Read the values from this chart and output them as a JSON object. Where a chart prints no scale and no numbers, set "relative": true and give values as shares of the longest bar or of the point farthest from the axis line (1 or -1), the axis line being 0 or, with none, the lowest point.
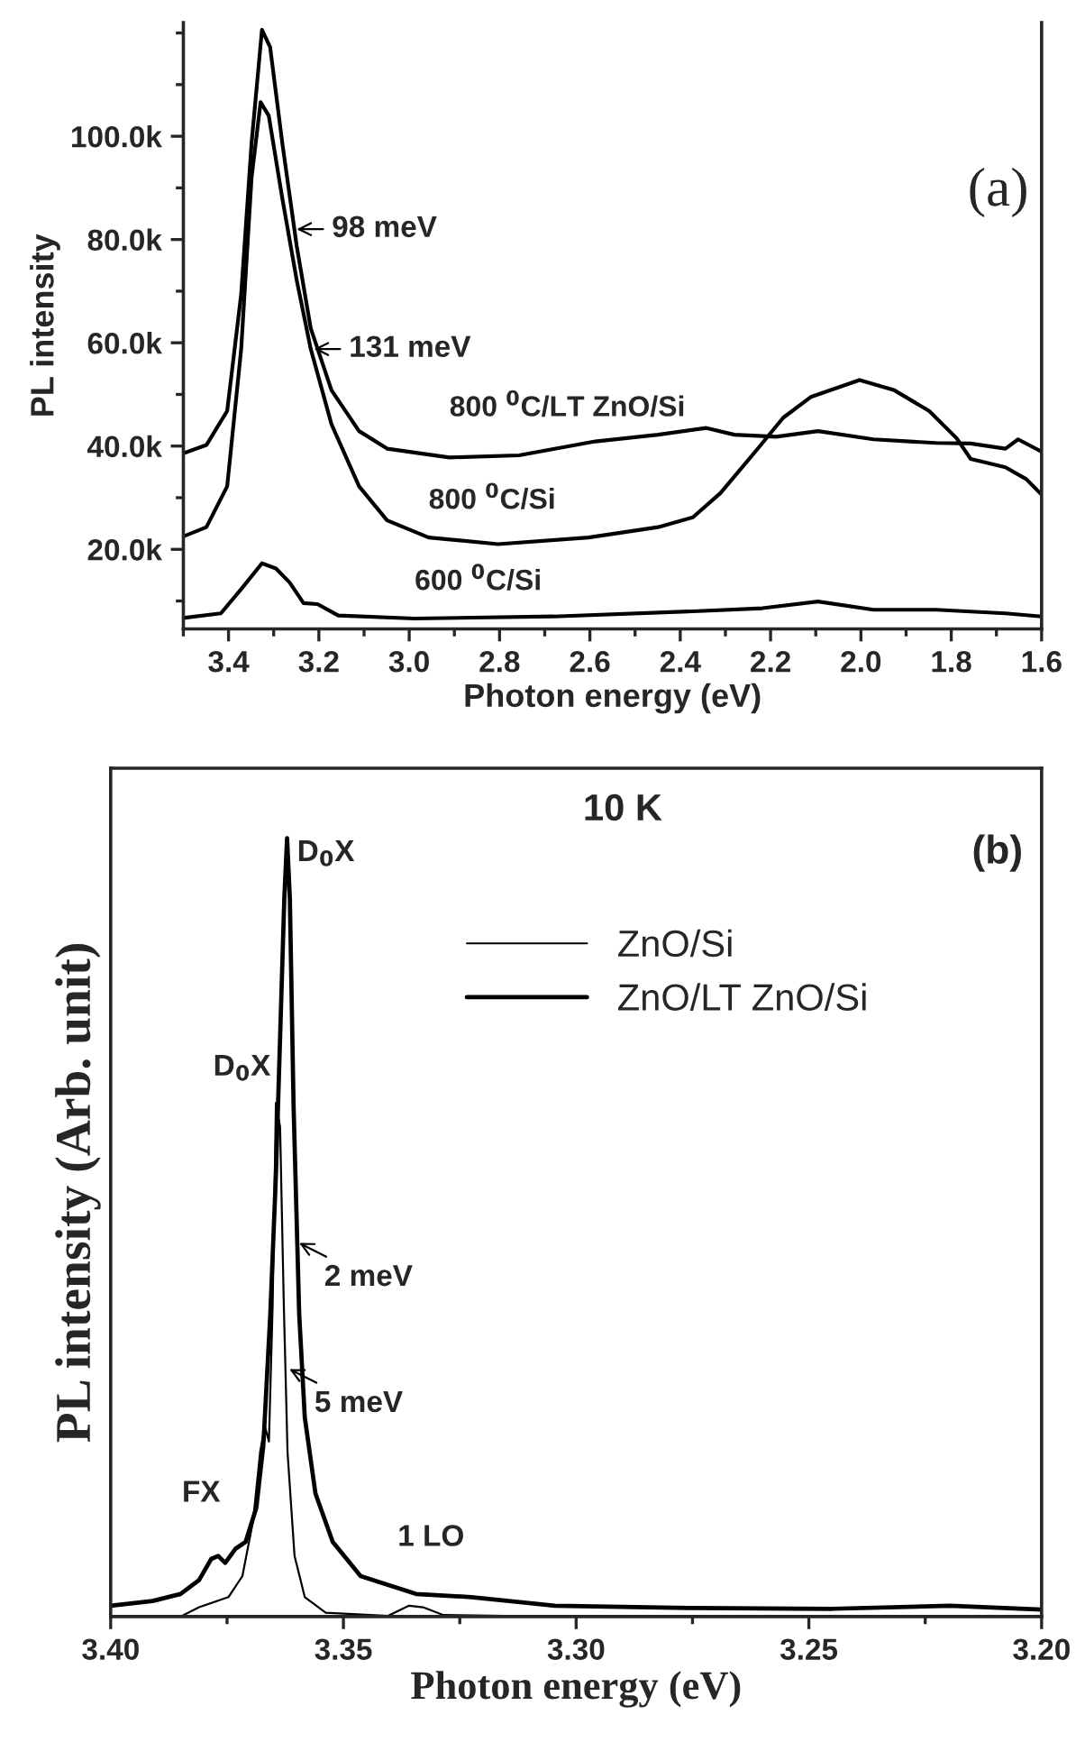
{
  "chart_data": [
    {
      "type": "line",
      "xlabel": "Photon energy (eV)",
      "ylabel": "PL intensity",
      "xlim": [
        3.5,
        1.6
      ],
      "ylim": [
        4.6,
        122
      ],
      "xticks": [
        3.4,
        3.2,
        {
          "value": 3.0,
          "label": "3.0"
        },
        2.8,
        2.6,
        2.4,
        2.2,
        {
          "value": 2.0,
          "label": "2.0"
        },
        1.8,
        1.6
      ],
      "yticks": [
        {
          "value": 20,
          "label": "20.0k"
        },
        {
          "value": 40,
          "label": "40.0k"
        },
        {
          "value": 60,
          "label": "60.0k"
        },
        {
          "value": 80,
          "label": "80.0k"
        },
        {
          "value": 100,
          "label": "100.0k"
        }
      ],
      "series": [
        {
          "name": "800 $^{0}$C/LT ZnO/Si",
          "color": "#000000",
          "x": [
            3.5,
            3.449,
            3.403,
            3.372,
            3.349,
            3.326,
            3.308,
            3.281,
            3.249,
            3.218,
            3.172,
            3.111,
            3.049,
            2.911,
            2.757,
            2.588,
            2.449,
            2.342,
            2.28,
            2.188,
            2.095,
            1.972,
            1.834,
            1.757,
            1.68,
            1.652,
            1.6
          ],
          "values": [
            38.6,
            40.2,
            46.8,
            69.4,
            98.7,
            120.6,
            117.3,
            98.7,
            78.7,
            62.8,
            50.8,
            42.9,
            39.5,
            37.8,
            38.2,
            40.9,
            42.2,
            43.5,
            42.2,
            41.8,
            42.9,
            41.3,
            40.6,
            40.5,
            39.5,
            41.3,
            38.9
          ]
        },
        {
          "name": "800 $^{0}$C/Si",
          "color": "#000000",
          "x": [
            3.5,
            3.449,
            3.403,
            3.372,
            3.349,
            3.329,
            3.311,
            3.281,
            3.249,
            3.218,
            3.172,
            3.111,
            3.049,
            2.957,
            2.803,
            2.603,
            2.449,
            2.372,
            2.311,
            2.234,
            2.172,
            2.111,
            2.003,
            1.926,
            1.849,
            1.788,
            1.757,
            1.68,
            1.634,
            1.6
          ],
          "values": [
            22.5,
            24.3,
            32.2,
            58.8,
            92.0,
            106.6,
            104.0,
            88.0,
            72.1,
            58.8,
            44.2,
            32.2,
            25.6,
            22.3,
            21.0,
            22.3,
            24.3,
            26.2,
            30.9,
            38.9,
            45.5,
            49.5,
            52.8,
            50.8,
            46.8,
            41.5,
            37.5,
            35.9,
            33.6,
            30.6
          ]
        },
        {
          "name": "600 $^{0}$C/Si",
          "color": "#000000",
          "x": [
            3.5,
            3.417,
            3.372,
            3.326,
            3.295,
            3.265,
            3.234,
            3.203,
            3.157,
            2.988,
            2.68,
            2.372,
            2.218,
            2.095,
            1.972,
            1.834,
            1.68,
            1.6
          ],
          "values": [
            6.7,
            7.6,
            12.3,
            17.3,
            16.3,
            13.6,
            9.6,
            9.4,
            7.2,
            6.6,
            7.0,
            8.0,
            8.6,
            9.9,
            8.3,
            8.3,
            7.6,
            7.0
          ]
        }
      ],
      "annotations": [
        "(a)",
        {
          "text": "98 meV",
          "x": 3.249,
          "y": 82
        },
        {
          "text": "131 meV",
          "x": 3.211,
          "y": 58.8
        }
      ]
    },
    {
      "type": "line",
      "xlabel": "Photon energy (eV)",
      "ylabel": "PL intensity (Arb. unit)",
      "relative": true,
      "xlim": [
        3.4,
        3.2
      ],
      "xticks": [
        {
          "value": 3.4,
          "label": "3.40"
        },
        {
          "value": 3.35,
          "label": "3.35"
        },
        {
          "value": 3.3,
          "label": "3.30"
        },
        {
          "value": 3.25,
          "label": "3.25"
        },
        {
          "value": 3.2,
          "label": "3.20"
        }
      ],
      "tick_labels": "x",
      "legend": "top right",
      "series": [
        {
          "name": "ZnO/Si",
          "color": "#000000",
          "x": [
            3.4,
            3.385,
            3.381,
            3.3747,
            3.3717,
            3.3694,
            3.3679,
            3.3669,
            3.366,
            3.3652,
            3.3645,
            3.3636,
            3.3628,
            3.362,
            3.3605,
            3.3583,
            3.3538,
            3.3404,
            3.3359,
            3.3329,
            3.3285,
            3.3046,
            3.2
          ],
          "values": [
            0,
            0,
            0.012,
            0.025,
            0.052,
            0.123,
            0.211,
            0.245,
            0.225,
            0.4,
            0.66,
            0.629,
            0.4,
            0.211,
            0.078,
            0.025,
            0.005,
            0.001,
            0.014,
            0.012,
            0.002,
            0,
            0
          ]
        },
        {
          "name": "ZnO/LT ZnO/Si",
          "color": "#000000",
          "x": [
            3.4,
            3.391,
            3.385,
            3.381,
            3.3784,
            3.3769,
            3.3754,
            3.3732,
            3.371,
            3.3687,
            3.3672,
            3.3657,
            3.3645,
            3.3636,
            3.3627,
            3.3621,
            3.3615,
            3.3607,
            3.3595,
            3.3583,
            3.356,
            3.3523,
            3.3463,
            3.3344,
            3.3225,
            3.3046,
            3.2748,
            3.245,
            3.2197,
            3.2
          ],
          "values": [
            0.014,
            0.02,
            0.029,
            0.047,
            0.074,
            0.078,
            0.069,
            0.087,
            0.096,
            0.14,
            0.22,
            0.389,
            0.567,
            0.744,
            0.922,
            1.0,
            0.922,
            0.655,
            0.389,
            0.256,
            0.158,
            0.096,
            0.052,
            0.029,
            0.025,
            0.014,
            0.011,
            0.01,
            0.014,
            0.009
          ]
        }
      ],
      "annotations": [
        "10 K",
        "(b)",
        {
          "text": "D$_{0}$X",
          "x": 3.3621,
          "y": 1.0
        },
        {
          "text": "D$_{0}$X",
          "x": 3.3645,
          "y": 0.66
        },
        {
          "text": "2 meV",
          "x": 3.3595,
          "y": 0.48
        },
        {
          "text": "5 meV",
          "x": 3.3616,
          "y": 0.318
        },
        {
          "text": "FX",
          "x": 3.3784,
          "y": 0.074
        },
        {
          "text": "1 LO",
          "x": 3.3344,
          "y": 0.03
        }
      ]
    }
  ]
}
